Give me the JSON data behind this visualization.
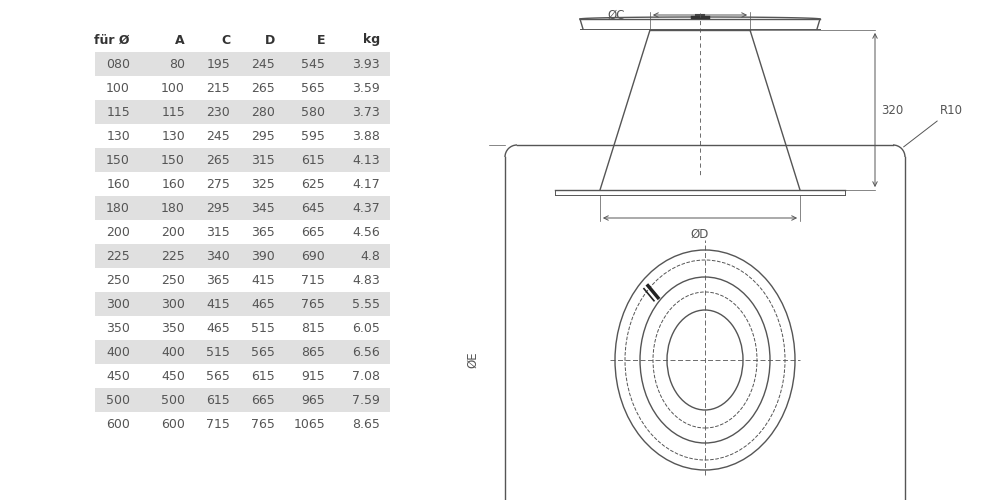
{
  "table_headers": [
    "für Ø",
    "A",
    "C",
    "D",
    "E",
    "kg"
  ],
  "table_rows": [
    [
      "080",
      "80",
      "195",
      "245",
      "545",
      "3.93"
    ],
    [
      "100",
      "100",
      "215",
      "265",
      "565",
      "3.59"
    ],
    [
      "115",
      "115",
      "230",
      "280",
      "580",
      "3.73"
    ],
    [
      "130",
      "130",
      "245",
      "295",
      "595",
      "3.88"
    ],
    [
      "150",
      "150",
      "265",
      "315",
      "615",
      "4.13"
    ],
    [
      "160",
      "160",
      "275",
      "325",
      "625",
      "4.17"
    ],
    [
      "180",
      "180",
      "295",
      "345",
      "645",
      "4.37"
    ],
    [
      "200",
      "200",
      "315",
      "365",
      "665",
      "4.56"
    ],
    [
      "225",
      "225",
      "340",
      "390",
      "690",
      "4.8"
    ],
    [
      "250",
      "250",
      "365",
      "415",
      "715",
      "4.83"
    ],
    [
      "300",
      "300",
      "415",
      "465",
      "765",
      "5.55"
    ],
    [
      "350",
      "350",
      "465",
      "515",
      "815",
      "6.05"
    ],
    [
      "400",
      "400",
      "515",
      "565",
      "865",
      "6.56"
    ],
    [
      "450",
      "450",
      "565",
      "615",
      "915",
      "7.08"
    ],
    [
      "500",
      "500",
      "615",
      "665",
      "965",
      "7.59"
    ],
    [
      "600",
      "600",
      "715",
      "765",
      "1065",
      "8.65"
    ]
  ],
  "shaded_rows": [
    0,
    2,
    4,
    6,
    8,
    10,
    12,
    14
  ],
  "bg_color": "#ffffff",
  "row_shade_color": "#e0e0e0",
  "text_color": "#555555",
  "header_color": "#333333",
  "dim_color": "#555555",
  "line_color": "#555555"
}
